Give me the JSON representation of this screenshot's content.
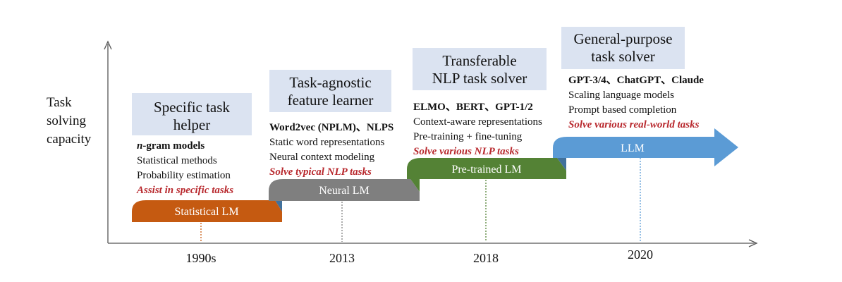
{
  "y_axis_title": [
    "Task",
    "solving",
    "capacity"
  ],
  "colors": {
    "statistical": "#c55a11",
    "neural": "#7f7f7f",
    "pretrained": "#548235",
    "llm": "#5b9bd5",
    "era_box": "#dbe3f1",
    "task_text": "#b8282d"
  },
  "stages": [
    {
      "band_label": "Statistical LM",
      "year": "1990s",
      "title": [
        "Specific task",
        "helper"
      ],
      "models_italic": "n",
      "models": "-gram models",
      "features": [
        "Statistical methods",
        "Probability estimation"
      ],
      "task": "Assist in specific tasks"
    },
    {
      "band_label": "Neural LM",
      "year": "2013",
      "title": [
        "Task-agnostic",
        "feature learner"
      ],
      "models": "Word2vec (NPLM)、NLPS",
      "features": [
        "Static word representations",
        "Neural context modeling"
      ],
      "task": "Solve typical NLP tasks"
    },
    {
      "band_label": "Pre-trained LM",
      "year": "2018",
      "title": [
        "Transferable",
        "NLP task solver"
      ],
      "models": "ELMO、BERT、GPT-1/2",
      "features": [
        "Context-aware representations",
        "Pre-training + fine-tuning"
      ],
      "task": "Solve various NLP tasks"
    },
    {
      "band_label": "LLM",
      "year": "2020",
      "title": [
        "General-purpose",
        "task solver"
      ],
      "models": "GPT-3/4、ChatGPT、Claude",
      "features": [
        "Scaling language models",
        "Prompt based completion"
      ],
      "task": "Solve various real-world tasks"
    }
  ]
}
